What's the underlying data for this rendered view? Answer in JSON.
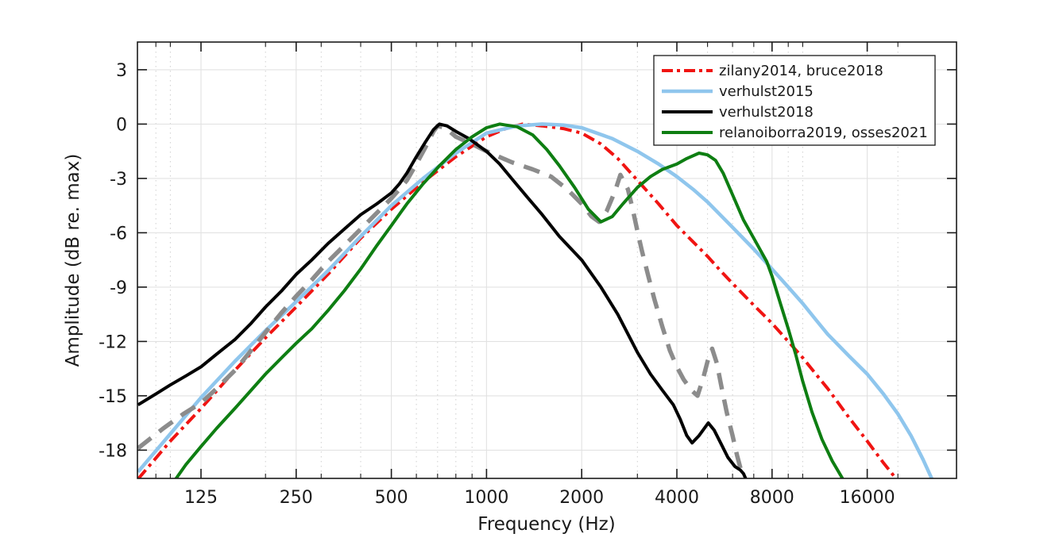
{
  "chart_data": {
    "type": "line",
    "title": "",
    "xlabel": "Frequency (Hz)",
    "ylabel": "Amplitude (dB re. max)",
    "xscale": "log",
    "xlim": [
      78.7,
      30650
    ],
    "ylim": [
      -19.56,
      4.53
    ],
    "grid": {
      "major": true,
      "minor_x_dotted": true
    },
    "xticks": {
      "values": [
        125,
        250,
        500,
        1000,
        2000,
        4000,
        8000,
        16000
      ],
      "labels": [
        "125",
        "250",
        "500",
        "1000",
        "2000",
        "4000",
        "8000",
        "16000"
      ]
    },
    "x_minor": [
      90,
      100,
      200,
      300,
      400,
      600,
      700,
      800,
      900,
      3000,
      5000,
      6000,
      7000,
      9000,
      10000,
      20000
    ],
    "yticks": {
      "values": [
        3,
        0,
        -3,
        -6,
        -9,
        -12,
        -15,
        -18
      ],
      "labels": [
        "3",
        "0",
        "-3",
        "-6",
        "-9",
        "-12",
        "-15",
        "-18"
      ]
    },
    "legend": {
      "position": "northeast",
      "border_color": "#1a1a1a",
      "background": "#ffffff"
    },
    "colors": {
      "red": "#f01412",
      "light_blue": "#8fc6ed",
      "black": "#000000",
      "green": "#0e7e12",
      "gray": "#8c8c8c",
      "grid_major": "#e2e2e2",
      "grid_minor": "#cfcfcf",
      "axis": "#1a1a1a"
    },
    "series": [
      {
        "id": "zilany2014-bruce2018",
        "name": "zilany2014, bruce2018",
        "color": "#f01412",
        "style": "dash-dot",
        "width": 4,
        "in_legend": true,
        "points": [
          [
            79,
            -19.6
          ],
          [
            100,
            -17.5
          ],
          [
            125,
            -15.7
          ],
          [
            160,
            -13.6
          ],
          [
            200,
            -11.8
          ],
          [
            250,
            -10.1
          ],
          [
            315,
            -8.3
          ],
          [
            400,
            -6.3
          ],
          [
            500,
            -4.7
          ],
          [
            630,
            -3.2
          ],
          [
            800,
            -1.8
          ],
          [
            1000,
            -0.7
          ],
          [
            1150,
            -0.25
          ],
          [
            1300,
            0
          ],
          [
            1500,
            -0.1
          ],
          [
            1750,
            -0.25
          ],
          [
            2000,
            -0.5
          ],
          [
            2300,
            -1.1
          ],
          [
            2600,
            -1.9
          ],
          [
            3000,
            -3.1
          ],
          [
            3500,
            -4.4
          ],
          [
            4000,
            -5.6
          ],
          [
            4500,
            -6.5
          ],
          [
            5000,
            -7.3
          ],
          [
            5500,
            -8.1
          ],
          [
            6000,
            -8.8
          ],
          [
            7000,
            -10
          ],
          [
            8000,
            -11
          ],
          [
            9000,
            -12
          ],
          [
            10000,
            -12.9
          ],
          [
            11000,
            -13.8
          ],
          [
            12000,
            -14.6
          ],
          [
            14000,
            -16.2
          ],
          [
            16000,
            -17.5
          ],
          [
            18000,
            -18.7
          ],
          [
            20000,
            -19.7
          ]
        ]
      },
      {
        "id": "verhulst2015",
        "name": "verhulst2015",
        "color": "#8fc6ed",
        "style": "solid",
        "width": 4.5,
        "in_legend": true,
        "points": [
          [
            79,
            -19.2
          ],
          [
            100,
            -17.1
          ],
          [
            125,
            -15.1
          ],
          [
            160,
            -13.1
          ],
          [
            200,
            -11.4
          ],
          [
            250,
            -9.8
          ],
          [
            315,
            -8.1
          ],
          [
            400,
            -6.2
          ],
          [
            500,
            -4.5
          ],
          [
            630,
            -3
          ],
          [
            800,
            -1.6
          ],
          [
            1000,
            -0.5
          ],
          [
            1250,
            -0.1
          ],
          [
            1500,
            0
          ],
          [
            1750,
            -0.05
          ],
          [
            2000,
            -0.2
          ],
          [
            2500,
            -0.8
          ],
          [
            3000,
            -1.5
          ],
          [
            3500,
            -2.2
          ],
          [
            4000,
            -2.9
          ],
          [
            4500,
            -3.6
          ],
          [
            5000,
            -4.3
          ],
          [
            6000,
            -5.7
          ],
          [
            7000,
            -6.9
          ],
          [
            8000,
            -8
          ],
          [
            9000,
            -9
          ],
          [
            10000,
            -9.9
          ],
          [
            11000,
            -10.8
          ],
          [
            12000,
            -11.6
          ],
          [
            14000,
            -12.8
          ],
          [
            16000,
            -13.8
          ],
          [
            18000,
            -14.9
          ],
          [
            20000,
            -16
          ],
          [
            22000,
            -17.2
          ],
          [
            24000,
            -18.5
          ],
          [
            25800,
            -19.7
          ]
        ]
      },
      {
        "id": "verhulst2018",
        "name": "verhulst2018",
        "color": "#000000",
        "style": "solid",
        "width": 4,
        "in_legend": true,
        "points": [
          [
            79,
            -15.5
          ],
          [
            90,
            -14.9
          ],
          [
            100,
            -14.4
          ],
          [
            112,
            -13.9
          ],
          [
            125,
            -13.4
          ],
          [
            140,
            -12.7
          ],
          [
            160,
            -11.9
          ],
          [
            180,
            -11
          ],
          [
            200,
            -10.1
          ],
          [
            225,
            -9.2
          ],
          [
            250,
            -8.3
          ],
          [
            280,
            -7.5
          ],
          [
            315,
            -6.6
          ],
          [
            355,
            -5.8
          ],
          [
            400,
            -5
          ],
          [
            450,
            -4.4
          ],
          [
            500,
            -3.8
          ],
          [
            530,
            -3.3
          ],
          [
            560,
            -2.7
          ],
          [
            600,
            -1.8
          ],
          [
            640,
            -1
          ],
          [
            680,
            -0.3
          ],
          [
            710,
            0
          ],
          [
            750,
            -0.1
          ],
          [
            800,
            -0.4
          ],
          [
            880,
            -0.8
          ],
          [
            1000,
            -1.5
          ],
          [
            1100,
            -2.2
          ],
          [
            1200,
            -3
          ],
          [
            1340,
            -4
          ],
          [
            1500,
            -5
          ],
          [
            1700,
            -6.2
          ],
          [
            2000,
            -7.5
          ],
          [
            2300,
            -9
          ],
          [
            2600,
            -10.5
          ],
          [
            3000,
            -12.6
          ],
          [
            3300,
            -13.8
          ],
          [
            3600,
            -14.7
          ],
          [
            3900,
            -15.5
          ],
          [
            4100,
            -16.3
          ],
          [
            4300,
            -17.2
          ],
          [
            4470,
            -17.6
          ],
          [
            4700,
            -17.2
          ],
          [
            5030,
            -16.5
          ],
          [
            5250,
            -16.9
          ],
          [
            5500,
            -17.6
          ],
          [
            5800,
            -18.4
          ],
          [
            6100,
            -18.9
          ],
          [
            6350,
            -19.1
          ],
          [
            6500,
            -19.3
          ],
          [
            6650,
            -19.7
          ]
        ]
      },
      {
        "id": "relanoiborra2019-osses2021",
        "name": "relanoiborra2019, osses2021",
        "color": "#0e7e12",
        "style": "solid",
        "width": 4,
        "in_legend": true,
        "points": [
          [
            103,
            -19.7
          ],
          [
            112,
            -18.8
          ],
          [
            125,
            -17.8
          ],
          [
            140,
            -16.8
          ],
          [
            160,
            -15.7
          ],
          [
            180,
            -14.7
          ],
          [
            200,
            -13.8
          ],
          [
            225,
            -12.9
          ],
          [
            250,
            -12.1
          ],
          [
            280,
            -11.3
          ],
          [
            315,
            -10.3
          ],
          [
            355,
            -9.2
          ],
          [
            400,
            -8
          ],
          [
            450,
            -6.7
          ],
          [
            500,
            -5.6
          ],
          [
            560,
            -4.4
          ],
          [
            630,
            -3.3
          ],
          [
            710,
            -2.3
          ],
          [
            800,
            -1.4
          ],
          [
            900,
            -0.7
          ],
          [
            1000,
            -0.2
          ],
          [
            1100,
            0
          ],
          [
            1250,
            -0.15
          ],
          [
            1400,
            -0.6
          ],
          [
            1550,
            -1.4
          ],
          [
            1700,
            -2.3
          ],
          [
            1900,
            -3.5
          ],
          [
            2100,
            -4.7
          ],
          [
            2300,
            -5.4
          ],
          [
            2500,
            -5.1
          ],
          [
            2700,
            -4.4
          ],
          [
            3000,
            -3.5
          ],
          [
            3300,
            -2.9
          ],
          [
            3600,
            -2.5
          ],
          [
            4000,
            -2.2
          ],
          [
            4300,
            -1.9
          ],
          [
            4700,
            -1.6
          ],
          [
            5000,
            -1.7
          ],
          [
            5300,
            -2
          ],
          [
            5600,
            -2.7
          ],
          [
            6000,
            -3.9
          ],
          [
            6500,
            -5.3
          ],
          [
            7000,
            -6.3
          ],
          [
            7700,
            -7.6
          ],
          [
            8000,
            -8.4
          ],
          [
            8500,
            -9.9
          ],
          [
            9000,
            -11.3
          ],
          [
            9500,
            -12.7
          ],
          [
            10000,
            -14.2
          ],
          [
            10700,
            -15.9
          ],
          [
            11500,
            -17.4
          ],
          [
            12400,
            -18.6
          ],
          [
            13500,
            -19.7
          ]
        ]
      },
      {
        "id": "unlabeled-gray-dashed",
        "name": "",
        "color": "#8c8c8c",
        "style": "dashed",
        "width": 5.5,
        "in_legend": false,
        "points": [
          [
            79,
            -17.9
          ],
          [
            95,
            -16.8
          ],
          [
            110,
            -16
          ],
          [
            125,
            -15.4
          ],
          [
            140,
            -14.6
          ],
          [
            160,
            -13.6
          ],
          [
            180,
            -12.5
          ],
          [
            200,
            -11.5
          ],
          [
            225,
            -10.4
          ],
          [
            250,
            -9.5
          ],
          [
            280,
            -8.6
          ],
          [
            315,
            -7.6
          ],
          [
            355,
            -6.7
          ],
          [
            400,
            -5.8
          ],
          [
            450,
            -4.9
          ],
          [
            500,
            -4.1
          ],
          [
            530,
            -3.6
          ],
          [
            560,
            -3.1
          ],
          [
            600,
            -2.2
          ],
          [
            640,
            -1.3
          ],
          [
            680,
            -0.4
          ],
          [
            700,
            -0.1
          ],
          [
            740,
            -0.2
          ],
          [
            800,
            -0.7
          ],
          [
            900,
            -1.1
          ],
          [
            1000,
            -1.5
          ],
          [
            1200,
            -2.1
          ],
          [
            1400,
            -2.5
          ],
          [
            1600,
            -2.9
          ],
          [
            1800,
            -3.6
          ],
          [
            2000,
            -4.4
          ],
          [
            2150,
            -5.1
          ],
          [
            2270,
            -5.4
          ],
          [
            2400,
            -4.8
          ],
          [
            2550,
            -3.7
          ],
          [
            2650,
            -2.8
          ],
          [
            2800,
            -3.6
          ],
          [
            2900,
            -4.7
          ],
          [
            3000,
            -5.9
          ],
          [
            3100,
            -7
          ],
          [
            3250,
            -8.4
          ],
          [
            3400,
            -9.7
          ],
          [
            3600,
            -11.2
          ],
          [
            3800,
            -12.5
          ],
          [
            4000,
            -13.4
          ],
          [
            4200,
            -14.1
          ],
          [
            4450,
            -14.7
          ],
          [
            4650,
            -15
          ],
          [
            4850,
            -14
          ],
          [
            5000,
            -13.1
          ],
          [
            5170,
            -12.4
          ],
          [
            5350,
            -13.2
          ],
          [
            5550,
            -14.6
          ],
          [
            5750,
            -15.9
          ],
          [
            6000,
            -17.2
          ],
          [
            6200,
            -18.3
          ],
          [
            6400,
            -19.2
          ],
          [
            6500,
            -19.7
          ]
        ]
      }
    ]
  }
}
